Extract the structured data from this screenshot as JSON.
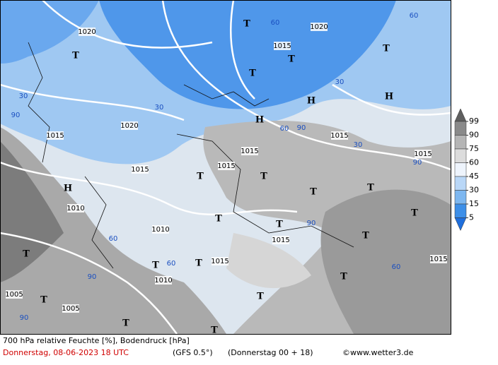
{
  "caption": {
    "title": "700 hPa relative Feuchte [%], Bodendruck [hPa]",
    "date": "Donnerstag, 08-06-2023  18 UTC",
    "model": "(GFS 0.5°)",
    "run": "(Donnerstag 00 + 18)",
    "site": "©www.wetter3.de"
  },
  "legend": {
    "levels": [
      99,
      90,
      75,
      60,
      45,
      30,
      15,
      5
    ],
    "colors": [
      "#5f5f5f",
      "#8a8a8a",
      "#b5b5b5",
      "#dcdcdc",
      "#eef4fc",
      "#b9d7f7",
      "#7db7f0",
      "#3d8fe8",
      "#1f6fdd"
    ]
  },
  "map_labels": {
    "isobars": [
      "1020",
      "1020",
      "1015",
      "1020",
      "1015",
      "1015",
      "1015",
      "1015",
      "1015",
      "1015",
      "1010",
      "1010",
      "1015",
      "1015",
      "1010",
      "1005",
      "1005",
      "1015"
    ],
    "humidity": [
      "30",
      "30",
      "30",
      "60",
      "60",
      "90",
      "90",
      "60",
      "30",
      "90",
      "60",
      "90",
      "60",
      "90",
      "60",
      "90"
    ],
    "highs": [
      "H",
      "H",
      "H",
      "H"
    ],
    "lows": [
      "T",
      "T",
      "T",
      "T",
      "T",
      "T",
      "T",
      "T",
      "T",
      "T",
      "T",
      "T",
      "T",
      "T",
      "T",
      "T",
      "T",
      "T",
      "T",
      "T",
      "T"
    ]
  }
}
